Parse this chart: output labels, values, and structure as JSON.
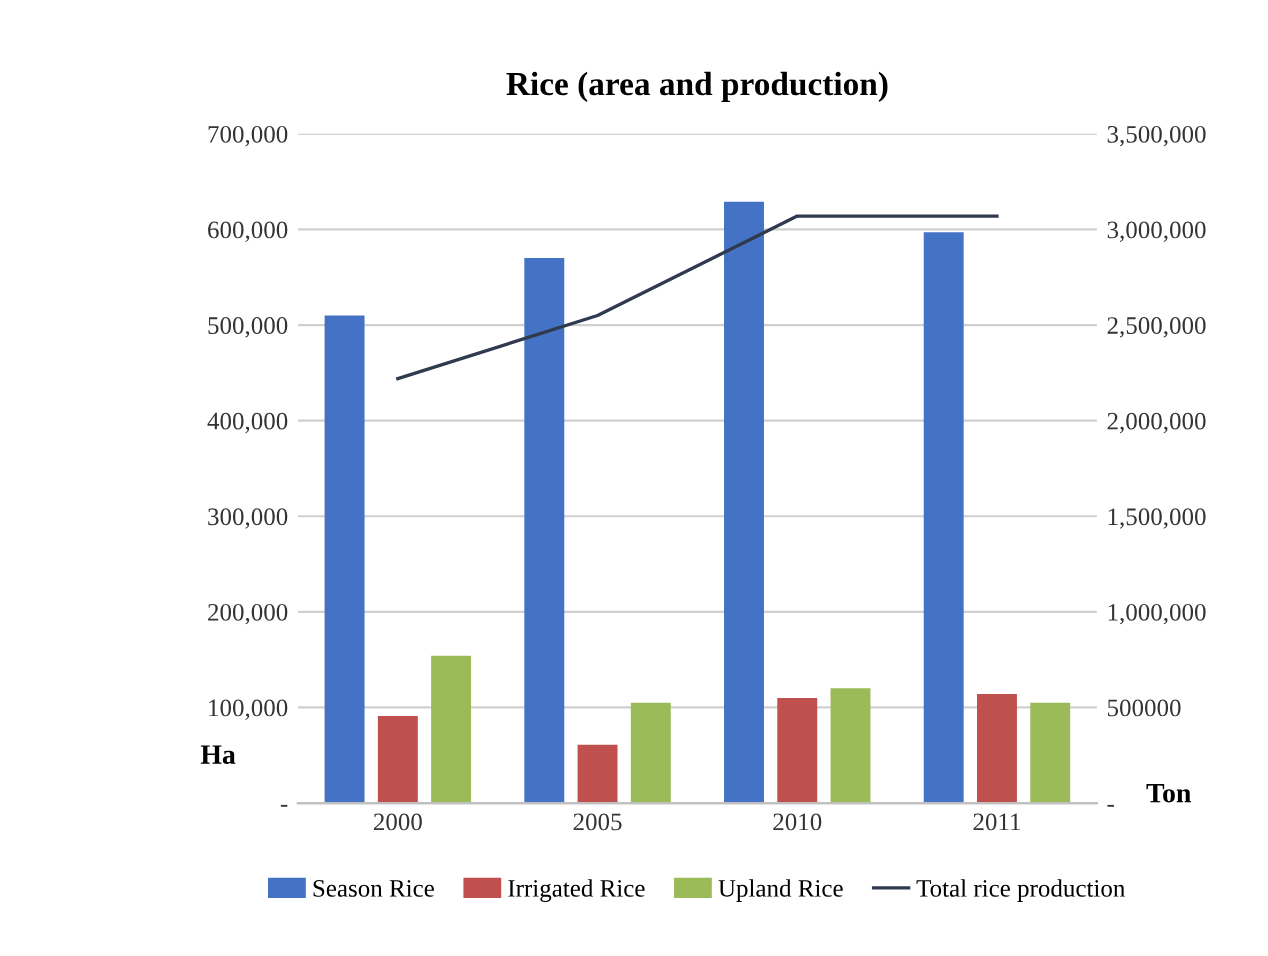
{
  "chart_data": {
    "type": "bar",
    "title": "Rice (area and production)",
    "ylabel": "Ha",
    "y2label": "Ton",
    "categories": [
      "2000",
      "2005",
      "2010",
      "2011"
    ],
    "series": [
      {
        "name": "Season Rice",
        "color": "#4472c4",
        "values": [
          510000,
          570000,
          629000,
          597000
        ]
      },
      {
        "name": "Irrigated Rice",
        "color": "#c0504d",
        "values": [
          91000,
          61000,
          110000,
          114000
        ]
      },
      {
        "name": "Upland Rice",
        "color": "#9bbb59",
        "values": [
          154000,
          105000,
          120000,
          105000
        ]
      },
      {
        "name": "Total rice production",
        "color": "#2f3a4f",
        "type": "line",
        "axis": "y2",
        "values": [
          2220000,
          2550000,
          3070000,
          3070000
        ]
      }
    ],
    "ylim": [
      0,
      700000
    ],
    "yticks": [
      {
        "value": 0,
        "label": "-"
      },
      {
        "value": 100000,
        "label": "100,000"
      },
      {
        "value": 200000,
        "label": "200,000"
      },
      {
        "value": 300000,
        "label": "300,000"
      },
      {
        "value": 400000,
        "label": "400,000"
      },
      {
        "value": 500000,
        "label": "500,000"
      },
      {
        "value": 600000,
        "label": "600,000"
      },
      {
        "value": 700000,
        "label": "700,000"
      }
    ],
    "y2lim": [
      0,
      3500000
    ],
    "y2ticks": [
      {
        "value": 0,
        "label": "-"
      },
      {
        "value": 500000,
        "label": "500000"
      },
      {
        "value": 1000000,
        "label": "1,000,000"
      },
      {
        "value": 1500000,
        "label": "1,500,000"
      },
      {
        "value": 2000000,
        "label": "2,000,000"
      },
      {
        "value": 2500000,
        "label": "2,500,000"
      },
      {
        "value": 3000000,
        "label": "3,000,000"
      },
      {
        "value": 3500000,
        "label": "3,500,000"
      }
    ],
    "grid": "y",
    "legend": "bottom"
  }
}
